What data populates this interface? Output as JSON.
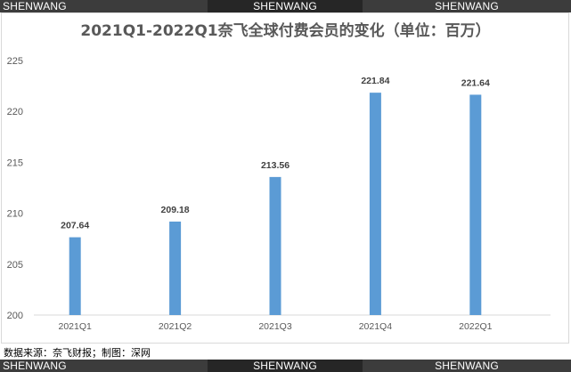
{
  "watermark": {
    "top": [
      "SHENWANG",
      "SHENWANG",
      "SHENWANG"
    ],
    "bottom": [
      "SHENWANG",
      "SHENWANG",
      "SHENWANG"
    ]
  },
  "source_note": "数据来源：奈飞财报；制图：深网",
  "colors": {
    "bar": "#5b9bd5",
    "axis_text": "#595959",
    "gridline": "#d9d9d9",
    "watermark_bg": "#3c3c3c"
  },
  "chart_data": {
    "type": "bar",
    "title": "2021Q1-2022Q1奈飞全球付费会员的变化（单位：百万）",
    "categories": [
      "2021Q1",
      "2021Q2",
      "2021Q3",
      "2021Q4",
      "2022Q1"
    ],
    "values": [
      207.64,
      209.18,
      213.56,
      221.84,
      221.64
    ],
    "value_labels": [
      "207.64",
      "209.18",
      "213.56",
      "221.84",
      "221.64"
    ],
    "ylim": [
      200,
      225
    ],
    "yticks": [
      200,
      205,
      210,
      215,
      220,
      225
    ],
    "grid": false,
    "xlabel": "",
    "ylabel": ""
  }
}
